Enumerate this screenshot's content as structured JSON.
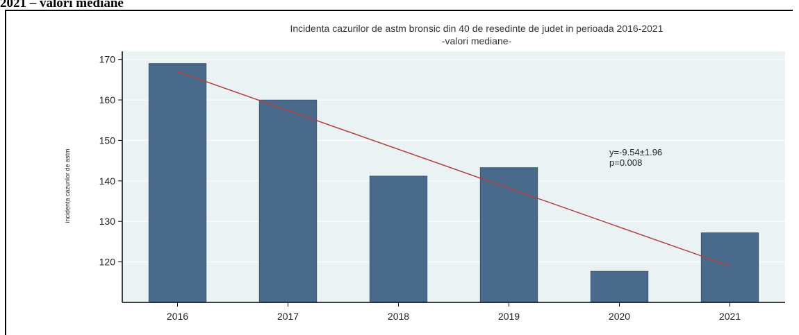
{
  "page": {
    "heading": "2021 – valori mediane"
  },
  "chart_data": {
    "type": "bar",
    "title": "Incidenta cazurilor de astm bronsic din 40 de resedinte de judet in perioada 2016-2021",
    "subtitle": "-valori mediane-",
    "xlabel": "",
    "ylabel": "incidenta cazurilor de astm",
    "categories": [
      "2016",
      "2017",
      "2018",
      "2019",
      "2020",
      "2021"
    ],
    "values": [
      169,
      160,
      141.2,
      143.3,
      117.7,
      127.2
    ],
    "ylim": [
      110,
      172
    ],
    "yticks": [
      120,
      130,
      140,
      150,
      160,
      170
    ],
    "grid": true,
    "bar_color": "#4a6a8c",
    "trend": {
      "x_start": "2016",
      "y_start": 167,
      "x_end": "2021",
      "y_end": 119,
      "color": "#b04040"
    },
    "annotation": [
      "y=-9.54±1.96",
      "p=0.008"
    ]
  }
}
